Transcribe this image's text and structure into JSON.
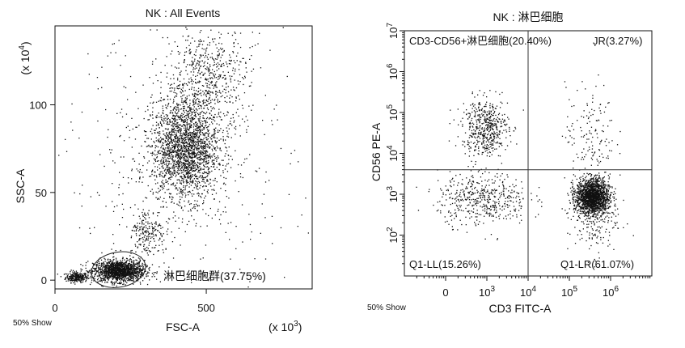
{
  "chart_data": [
    {
      "type": "scatter",
      "title": "NK : All Events",
      "xlabel": "FSC-A",
      "ylabel": "SSC-A",
      "x_multiplier": "(x 10",
      "x_multiplier_exp": "3",
      "y_multiplier": "(x 10",
      "y_multiplier_exp": "4",
      "closing_paren": ")",
      "xlim": [
        0,
        850
      ],
      "ylim": [
        -5,
        145
      ],
      "x_ticks": [
        {
          "value": 0,
          "label": "0"
        },
        {
          "value": 500,
          "label": "500"
        }
      ],
      "y_ticks": [
        {
          "value": 0,
          "label": "0"
        },
        {
          "value": 50,
          "label": "50"
        },
        {
          "value": 100,
          "label": "100"
        }
      ],
      "show_note": "50% Show",
      "gate": {
        "name": "淋巴细胞群",
        "percent": "(37.75%)",
        "center": [
          210,
          6
        ],
        "radii": [
          90,
          10
        ],
        "label": "淋巴细胞群(37.75%)"
      },
      "populations": [
        {
          "cx": 70,
          "cy": 2,
          "sx": 18,
          "sy": 1.5,
          "n": 260
        },
        {
          "cx": 210,
          "cy": 5.5,
          "sx": 42,
          "sy": 3,
          "n": 1500
        },
        {
          "cx": 305,
          "cy": 28,
          "sx": 30,
          "sy": 7,
          "n": 200
        },
        {
          "cx": 430,
          "cy": 75,
          "sx": 55,
          "sy": 14,
          "n": 2000
        },
        {
          "cx": 500,
          "cy": 115,
          "sx": 70,
          "sy": 15,
          "n": 600
        },
        {
          "cx": 400,
          "cy": 60,
          "sx": 190,
          "sy": 40,
          "n": 500
        }
      ]
    },
    {
      "type": "scatter",
      "title": "NK : 淋巴细胞",
      "xlabel": "CD3 FITC-A",
      "ylabel": "CD56 PE-A",
      "x_scale": "log",
      "y_scale": "log",
      "xlim": [
        1,
        7
      ],
      "ylim": [
        1,
        7
      ],
      "x_ticks": [
        {
          "value": 2,
          "label": "0"
        },
        {
          "value": 3,
          "label": "10",
          "exp": "3"
        },
        {
          "value": 4,
          "label": "10",
          "exp": "4"
        },
        {
          "value": 5,
          "label": "10",
          "exp": "5"
        },
        {
          "value": 6,
          "label": "10",
          "exp": "6"
        }
      ],
      "y_ticks": [
        {
          "value": 2,
          "label": "10",
          "exp": "2"
        },
        {
          "value": 3,
          "label": "10",
          "exp": "3"
        },
        {
          "value": 4,
          "label": "10",
          "exp": "4"
        },
        {
          "value": 5,
          "label": "10",
          "exp": "5"
        },
        {
          "value": 6,
          "label": "10",
          "exp": "6"
        },
        {
          "value": 7,
          "label": "10",
          "exp": "7"
        }
      ],
      "show_note": "50% Show",
      "quadrant_divider": {
        "x": 4,
        "y": 3.6
      },
      "quadrant_labels": {
        "upper_left": "CD3-CD56+淋巴细胞(20.40%)",
        "upper_right": "JR(3.27%)",
        "lower_left": "Q1-LL(15.26%)",
        "lower_right": "Q1-LR(61.07%)"
      },
      "populations": [
        {
          "cx": 2.95,
          "cy": 4.65,
          "sx": 0.28,
          "sy": 0.35,
          "n": 500
        },
        {
          "cx": 5.55,
          "cy": 2.95,
          "sx": 0.2,
          "sy": 0.22,
          "n": 1700
        },
        {
          "cx": 5.55,
          "cy": 2.5,
          "sx": 0.3,
          "sy": 0.5,
          "n": 220
        },
        {
          "cx": 5.5,
          "cy": 4.5,
          "sx": 0.3,
          "sy": 0.6,
          "n": 140
        },
        {
          "cx": 2.9,
          "cy": 2.9,
          "sx": 0.55,
          "sy": 0.32,
          "n": 480
        }
      ]
    }
  ]
}
